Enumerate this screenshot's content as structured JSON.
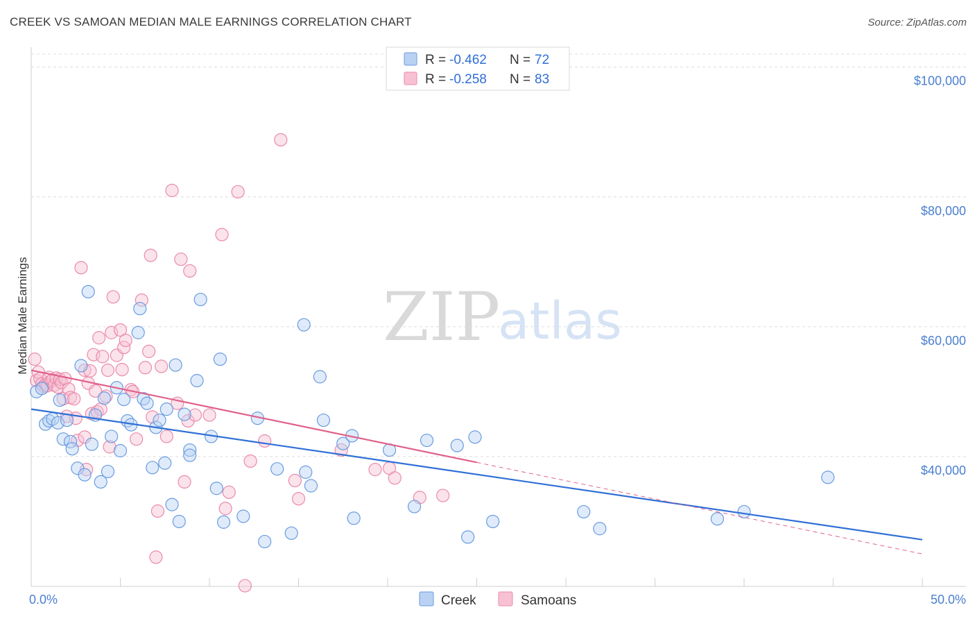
{
  "header": {
    "title": "CREEK VS SAMOAN MEDIAN MALE EARNINGS CORRELATION CHART",
    "source_label": "Source: ",
    "source_value": "ZipAtlas.com"
  },
  "watermark": {
    "zip": "ZIP",
    "atlas": "atlas"
  },
  "legend": {
    "rows": [
      {
        "r_label": "R = ",
        "r_value": "-0.462",
        "n_label": "N = ",
        "n_value": "72"
      },
      {
        "r_label": "R = ",
        "r_value": "-0.258",
        "n_label": "N = ",
        "n_value": "83"
      }
    ]
  },
  "colors": {
    "creek_fill": "#b9d2f3",
    "creek_stroke": "#6a9be0",
    "creek_line": "#2f6fd6",
    "samoan_fill": "#f7c1d3",
    "samoan_stroke": "#ea8aab",
    "samoan_line": "#e0608a",
    "axis_text": "#4a7fd0",
    "grid": "#dcdcdc"
  },
  "chart_data": {
    "type": "scatter",
    "title": "CREEK VS SAMOAN MEDIAN MALE EARNINGS CORRELATION CHART",
    "xlabel": "",
    "ylabel": "Median Male Earnings",
    "xlim": [
      0,
      50
    ],
    "ylim": [
      20000,
      102000
    ],
    "x_tick_labels": [
      "0.0%",
      "50.0%"
    ],
    "y_ticks": [
      {
        "value": 40000,
        "label": "$40,000"
      },
      {
        "value": 60000,
        "label": "$60,000"
      },
      {
        "value": 80000,
        "label": "$80,000"
      },
      {
        "value": 100000,
        "label": "$100,000"
      }
    ],
    "grid": true,
    "legend_position": "top-center",
    "series": [
      {
        "name": "Creek",
        "r": -0.462,
        "n": 72,
        "trend": {
          "x": [
            0,
            50
          ],
          "y": [
            47300,
            27200
          ]
        },
        "points": [
          [
            0.3,
            50000
          ],
          [
            0.6,
            50500
          ],
          [
            0.8,
            45000
          ],
          [
            1.0,
            45500
          ],
          [
            1.2,
            45800
          ],
          [
            1.5,
            45200
          ],
          [
            1.6,
            48700
          ],
          [
            1.8,
            42700
          ],
          [
            2.0,
            45600
          ],
          [
            2.2,
            42300
          ],
          [
            2.3,
            41200
          ],
          [
            2.6,
            38200
          ],
          [
            2.8,
            54000
          ],
          [
            3.0,
            37200
          ],
          [
            3.2,
            65400
          ],
          [
            3.4,
            41900
          ],
          [
            3.6,
            46400
          ],
          [
            3.9,
            36100
          ],
          [
            4.1,
            49000
          ],
          [
            4.3,
            37700
          ],
          [
            4.5,
            43100
          ],
          [
            4.8,
            50600
          ],
          [
            5.0,
            40900
          ],
          [
            5.2,
            48800
          ],
          [
            5.4,
            45500
          ],
          [
            5.6,
            44900
          ],
          [
            6.0,
            59100
          ],
          [
            6.1,
            62800
          ],
          [
            6.3,
            48900
          ],
          [
            6.5,
            48200
          ],
          [
            6.8,
            38300
          ],
          [
            7.0,
            44500
          ],
          [
            7.2,
            45600
          ],
          [
            7.5,
            39000
          ],
          [
            7.6,
            47300
          ],
          [
            7.9,
            32600
          ],
          [
            8.1,
            54100
          ],
          [
            8.3,
            30000
          ],
          [
            8.6,
            46500
          ],
          [
            8.9,
            41000
          ],
          [
            8.9,
            40200
          ],
          [
            9.5,
            64200
          ],
          [
            9.3,
            51700
          ],
          [
            10.1,
            43100
          ],
          [
            10.4,
            35100
          ],
          [
            10.6,
            55000
          ],
          [
            10.8,
            29900
          ],
          [
            11.9,
            30800
          ],
          [
            12.7,
            45900
          ],
          [
            13.1,
            26900
          ],
          [
            13.8,
            38100
          ],
          [
            14.6,
            28200
          ],
          [
            15.3,
            60300
          ],
          [
            15.4,
            37600
          ],
          [
            15.7,
            35500
          ],
          [
            16.2,
            52300
          ],
          [
            16.4,
            45600
          ],
          [
            17.5,
            42000
          ],
          [
            18.0,
            43200
          ],
          [
            18.1,
            30500
          ],
          [
            20.1,
            41000
          ],
          [
            21.5,
            32300
          ],
          [
            22.2,
            42500
          ],
          [
            23.9,
            41700
          ],
          [
            24.5,
            27600
          ],
          [
            24.9,
            43000
          ],
          [
            25.9,
            30000
          ],
          [
            31.0,
            31500
          ],
          [
            31.9,
            28900
          ],
          [
            38.5,
            30400
          ],
          [
            40.0,
            31500
          ],
          [
            44.7,
            36800
          ]
        ]
      },
      {
        "name": "Samoans",
        "r": -0.258,
        "n": 83,
        "trend": {
          "x": [
            0,
            25
          ],
          "y": [
            53300,
            39100
          ]
        },
        "trend_dashed": {
          "x": [
            25,
            50
          ],
          "y": [
            39100,
            25000
          ]
        },
        "points": [
          [
            0.2,
            55000
          ],
          [
            0.3,
            51700
          ],
          [
            0.4,
            53000
          ],
          [
            0.5,
            52000
          ],
          [
            0.6,
            51200
          ],
          [
            0.7,
            50800
          ],
          [
            0.8,
            51100
          ],
          [
            0.9,
            50900
          ],
          [
            1.0,
            52200
          ],
          [
            1.1,
            51600
          ],
          [
            1.2,
            51800
          ],
          [
            1.3,
            51000
          ],
          [
            1.4,
            52100
          ],
          [
            1.5,
            50700
          ],
          [
            1.6,
            51900
          ],
          [
            1.7,
            51400
          ],
          [
            1.8,
            48900
          ],
          [
            1.9,
            52000
          ],
          [
            2.0,
            46200
          ],
          [
            2.1,
            50400
          ],
          [
            2.2,
            49100
          ],
          [
            2.4,
            48900
          ],
          [
            2.5,
            45900
          ],
          [
            2.6,
            42500
          ],
          [
            2.8,
            69100
          ],
          [
            3.0,
            53300
          ],
          [
            3.0,
            43000
          ],
          [
            3.1,
            38000
          ],
          [
            3.2,
            51300
          ],
          [
            3.3,
            53200
          ],
          [
            3.4,
            46600
          ],
          [
            3.5,
            55700
          ],
          [
            3.6,
            50100
          ],
          [
            3.7,
            46900
          ],
          [
            3.8,
            58300
          ],
          [
            3.9,
            47300
          ],
          [
            4.0,
            55400
          ],
          [
            4.2,
            49300
          ],
          [
            4.3,
            53300
          ],
          [
            4.4,
            41500
          ],
          [
            4.5,
            59100
          ],
          [
            4.6,
            64600
          ],
          [
            4.8,
            55600
          ],
          [
            5.0,
            59500
          ],
          [
            5.1,
            53400
          ],
          [
            5.2,
            56800
          ],
          [
            5.3,
            57900
          ],
          [
            5.6,
            50300
          ],
          [
            5.7,
            50000
          ],
          [
            5.9,
            42700
          ],
          [
            6.2,
            64100
          ],
          [
            6.4,
            53700
          ],
          [
            6.6,
            56200
          ],
          [
            6.7,
            71000
          ],
          [
            6.8,
            46100
          ],
          [
            7.0,
            24500
          ],
          [
            7.1,
            31600
          ],
          [
            7.3,
            53900
          ],
          [
            7.6,
            43100
          ],
          [
            7.9,
            81000
          ],
          [
            8.2,
            48200
          ],
          [
            8.4,
            70400
          ],
          [
            8.6,
            36100
          ],
          [
            8.8,
            45500
          ],
          [
            8.9,
            68600
          ],
          [
            9.2,
            46400
          ],
          [
            10.0,
            46400
          ],
          [
            10.7,
            74200
          ],
          [
            10.9,
            32000
          ],
          [
            11.1,
            34500
          ],
          [
            11.6,
            80800
          ],
          [
            12.0,
            20100
          ],
          [
            12.3,
            39300
          ],
          [
            13.1,
            42400
          ],
          [
            14.8,
            36300
          ],
          [
            15.0,
            33500
          ],
          [
            14.0,
            88800
          ],
          [
            17.4,
            41000
          ],
          [
            19.3,
            38000
          ],
          [
            20.1,
            38200
          ],
          [
            20.4,
            36700
          ],
          [
            21.8,
            33700
          ],
          [
            23.1,
            34000
          ]
        ]
      }
    ]
  },
  "bottom_legend": [
    "Creek",
    "Samoans"
  ]
}
